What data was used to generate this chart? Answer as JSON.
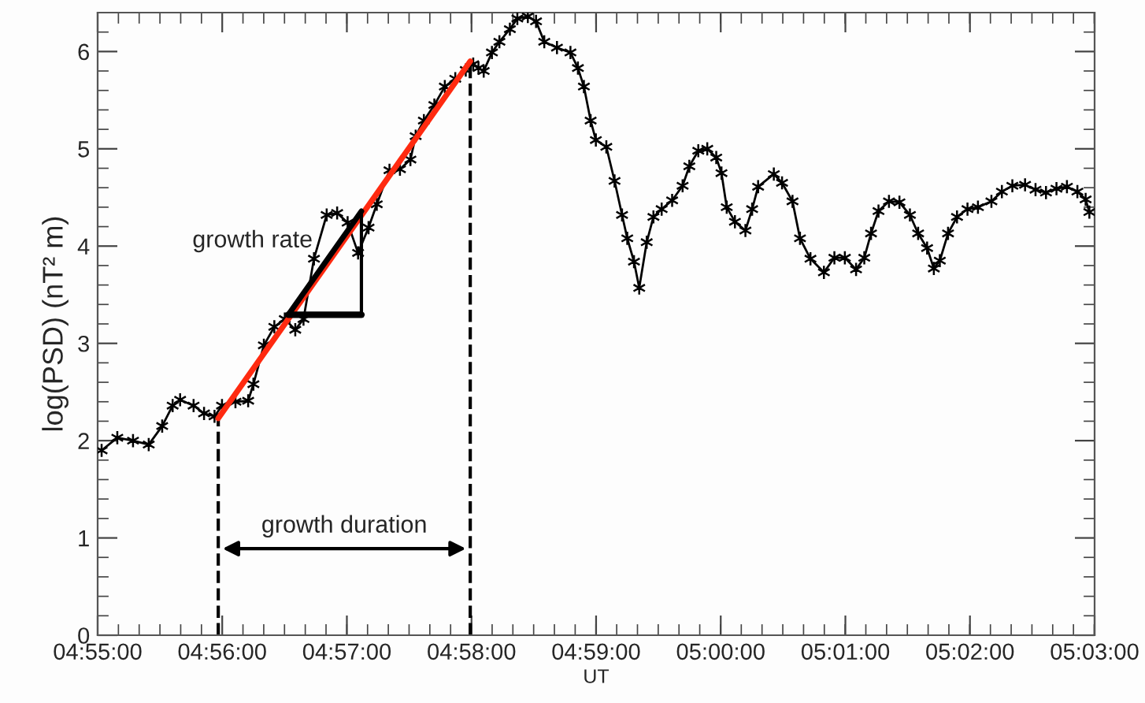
{
  "chart_data": {
    "type": "line",
    "xlabel": "UT",
    "ylabel": "log(PSD) (nT² m)",
    "xlim": [
      4.91667,
      5.05
    ],
    "ylim": [
      0,
      6.4
    ],
    "xticks": [
      {
        "value": 4.91667,
        "label": "04:55:00"
      },
      {
        "value": 4.93333,
        "label": "04:56:00"
      },
      {
        "value": 4.95,
        "label": "04:57:00"
      },
      {
        "value": 4.96667,
        "label": "04:58:00"
      },
      {
        "value": 4.98333,
        "label": "04:59:00"
      },
      {
        "value": 5.0,
        "label": "05:00:00"
      },
      {
        "value": 5.01667,
        "label": "05:01:00"
      },
      {
        "value": 5.03333,
        "label": "05:02:00"
      },
      {
        "value": 5.05,
        "label": "05:03:00"
      }
    ],
    "yticks": [
      0,
      1,
      2,
      3,
      4,
      5,
      6
    ],
    "grid": false,
    "legend": false,
    "series": [
      {
        "color": "#000000",
        "marker": "cross",
        "line_style": "solid",
        "x": [
          4.9172,
          4.9193,
          4.9214,
          4.9235,
          4.9253,
          4.9267,
          4.9277,
          4.9295,
          4.9309,
          4.9323,
          4.9333,
          4.9351,
          4.9368,
          4.9375,
          4.9389,
          4.9403,
          4.9417,
          4.9431,
          4.9442,
          4.9456,
          4.9473,
          4.9487,
          4.9501,
          4.9515,
          4.9529,
          4.954,
          4.9557,
          4.9571,
          4.9585,
          4.9592,
          4.9603,
          4.9617,
          4.9631,
          4.9645,
          4.9659,
          4.9669,
          4.9676,
          4.9683,
          4.9694,
          4.9704,
          4.9718,
          4.9728,
          4.9742,
          4.9753,
          4.9764,
          4.9781,
          4.9799,
          4.9809,
          4.9817,
          4.9826,
          4.9833,
          4.9847,
          4.9858,
          4.9868,
          4.9875,
          4.9884,
          4.9891,
          4.9901,
          4.991,
          4.9921,
          4.9935,
          4.9949,
          4.9958,
          4.997,
          4.9982,
          4.9994,
          5.0001,
          5.0008,
          5.0019,
          5.0033,
          5.0042,
          5.005,
          5.0071,
          5.0082,
          5.0096,
          5.0106,
          5.012,
          5.0138,
          5.0152,
          5.0166,
          5.0181,
          5.0192,
          5.0201,
          5.0211,
          5.0225,
          5.0239,
          5.0253,
          5.0264,
          5.0276,
          5.0285,
          5.0293,
          5.0304,
          5.0316,
          5.033,
          5.0344,
          5.0362,
          5.0376,
          5.039,
          5.0407,
          5.0421,
          5.0435,
          5.0449,
          5.0463,
          5.0477,
          5.0488,
          5.0493
        ],
        "values": [
          1.9,
          2.03,
          2.0,
          1.96,
          2.15,
          2.36,
          2.42,
          2.36,
          2.28,
          2.25,
          2.36,
          2.4,
          2.41,
          2.58,
          2.98,
          3.17,
          3.25,
          3.14,
          3.25,
          3.87,
          4.32,
          4.34,
          4.24,
          3.93,
          4.19,
          4.43,
          4.78,
          4.79,
          4.89,
          5.13,
          5.29,
          5.45,
          5.64,
          5.72,
          5.81,
          5.87,
          5.83,
          5.8,
          5.99,
          6.1,
          6.23,
          6.34,
          6.36,
          6.31,
          6.1,
          6.04,
          5.99,
          5.83,
          5.64,
          5.29,
          5.09,
          5.02,
          4.67,
          4.32,
          4.08,
          3.84,
          3.57,
          4.04,
          4.3,
          4.38,
          4.47,
          4.62,
          4.82,
          4.98,
          5.0,
          4.91,
          4.75,
          4.4,
          4.25,
          4.16,
          4.38,
          4.61,
          4.74,
          4.65,
          4.46,
          4.08,
          3.87,
          3.73,
          3.88,
          3.88,
          3.76,
          3.88,
          4.13,
          4.36,
          4.46,
          4.45,
          4.32,
          4.13,
          3.98,
          3.77,
          3.85,
          4.13,
          4.3,
          4.38,
          4.4,
          4.46,
          4.56,
          4.62,
          4.63,
          4.58,
          4.55,
          4.59,
          4.61,
          4.56,
          4.48,
          4.35
        ]
      },
      {
        "color": "#ff2a10",
        "marker": "none",
        "line_style": "solid",
        "x": [
          4.9328,
          4.9665
        ],
        "values": [
          2.23,
          5.9
        ]
      }
    ],
    "ref_lines": [
      {
        "axis": "x",
        "value": 4.9328,
        "color": "#000000",
        "line_style": "dashed"
      },
      {
        "axis": "x",
        "value": 4.9665,
        "color": "#000000",
        "line_style": "dashed"
      }
    ],
    "annotations": [
      "growth rate",
      "growth duration"
    ]
  }
}
